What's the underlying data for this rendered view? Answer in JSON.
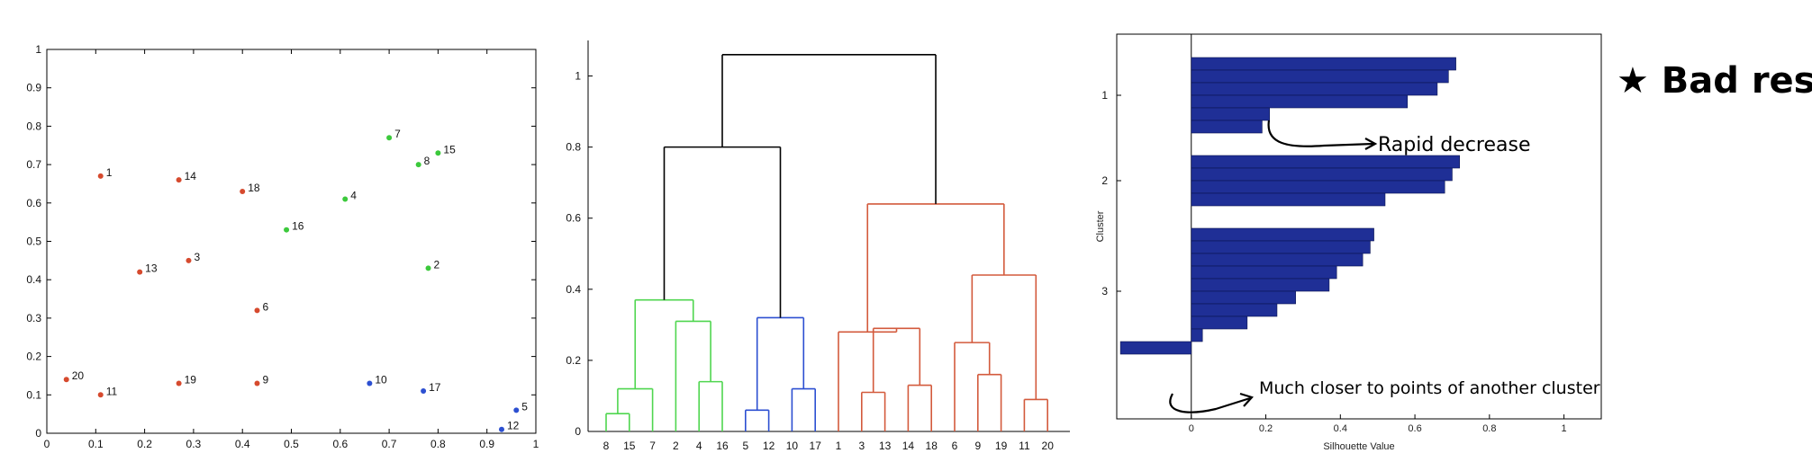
{
  "chart_data": [
    {
      "type": "scatter",
      "xlim": [
        0,
        1
      ],
      "ylim": [
        0,
        1
      ],
      "grid": false,
      "xticks": [
        "0",
        "0.1",
        "0.2",
        "0.3",
        "0.4",
        "0.5",
        "0.6",
        "0.7",
        "0.8",
        "0.9",
        "1"
      ],
      "yticks": [
        "0",
        "0.1",
        "0.2",
        "0.3",
        "0.4",
        "0.5",
        "0.6",
        "0.7",
        "0.8",
        "0.9",
        "1"
      ],
      "colors": {
        "green": "#3cc93c",
        "red": "#d64a2e",
        "blue": "#2c4fd1"
      },
      "points": [
        {
          "label": "1",
          "x": 0.11,
          "y": 0.67,
          "color": "red"
        },
        {
          "label": "2",
          "x": 0.78,
          "y": 0.43,
          "color": "green"
        },
        {
          "label": "3",
          "x": 0.29,
          "y": 0.45,
          "color": "red"
        },
        {
          "label": "4",
          "x": 0.61,
          "y": 0.61,
          "color": "green"
        },
        {
          "label": "5",
          "x": 0.96,
          "y": 0.06,
          "color": "blue"
        },
        {
          "label": "6",
          "x": 0.43,
          "y": 0.32,
          "color": "red"
        },
        {
          "label": "7",
          "x": 0.7,
          "y": 0.77,
          "color": "green"
        },
        {
          "label": "8",
          "x": 0.76,
          "y": 0.7,
          "color": "green"
        },
        {
          "label": "9",
          "x": 0.43,
          "y": 0.13,
          "color": "red"
        },
        {
          "label": "10",
          "x": 0.66,
          "y": 0.13,
          "color": "blue"
        },
        {
          "label": "11",
          "x": 0.11,
          "y": 0.1,
          "color": "red"
        },
        {
          "label": "12",
          "x": 0.93,
          "y": 0.01,
          "color": "blue"
        },
        {
          "label": "13",
          "x": 0.19,
          "y": 0.42,
          "color": "red"
        },
        {
          "label": "14",
          "x": 0.27,
          "y": 0.66,
          "color": "red"
        },
        {
          "label": "15",
          "x": 0.8,
          "y": 0.73,
          "color": "green"
        },
        {
          "label": "16",
          "x": 0.49,
          "y": 0.53,
          "color": "green"
        },
        {
          "label": "17",
          "x": 0.77,
          "y": 0.11,
          "color": "blue"
        },
        {
          "label": "18",
          "x": 0.4,
          "y": 0.63,
          "color": "red"
        },
        {
          "label": "19",
          "x": 0.27,
          "y": 0.13,
          "color": "red"
        },
        {
          "label": "20",
          "x": 0.04,
          "y": 0.14,
          "color": "red"
        }
      ]
    },
    {
      "type": "dendrogram",
      "ylim": [
        0,
        1.1
      ],
      "yticks": [
        "0",
        "0.2",
        "0.4",
        "0.6",
        "0.8",
        "1"
      ],
      "leaf_order": [
        "8",
        "15",
        "7",
        "2",
        "4",
        "16",
        "5",
        "12",
        "10",
        "17",
        "1",
        "3",
        "13",
        "14",
        "18",
        "6",
        "9",
        "19",
        "11",
        "20"
      ],
      "colors": {
        "green": "#4fd64f",
        "blue": "#2c4fd1",
        "red": "#d35a3c",
        "black": "#000000"
      },
      "merges": [
        {
          "a": "8",
          "b": "15",
          "height": 0.05,
          "color": "green"
        },
        {
          "a": [
            "8",
            "15"
          ],
          "b": "7",
          "height": 0.12,
          "color": "green"
        },
        {
          "a": "4",
          "b": "16",
          "height": 0.14,
          "color": "green"
        },
        {
          "a": "2",
          "b": [
            "4",
            "16"
          ],
          "height": 0.31,
          "color": "green"
        },
        {
          "a": [
            "8",
            "15",
            "7"
          ],
          "b": [
            "2",
            "4",
            "16"
          ],
          "height": 0.37,
          "color": "green"
        },
        {
          "a": "5",
          "b": "12",
          "height": 0.06,
          "color": "blue"
        },
        {
          "a": "10",
          "b": "17",
          "height": 0.12,
          "color": "blue"
        },
        {
          "a": [
            "5",
            "12"
          ],
          "b": [
            "10",
            "17"
          ],
          "height": 0.32,
          "color": "blue"
        },
        {
          "a": "3",
          "b": "13",
          "height": 0.11,
          "color": "red"
        },
        {
          "a": "14",
          "b": "18",
          "height": 0.13,
          "color": "red"
        },
        {
          "a": [
            "3",
            "13"
          ],
          "b": [
            "14",
            "18"
          ],
          "height": 0.29,
          "color": "red"
        },
        {
          "a": "1",
          "b": [
            "3",
            "13",
            "14",
            "18"
          ],
          "height": 0.28,
          "color": "red"
        },
        {
          "a": "9",
          "b": "19",
          "height": 0.16,
          "color": "red"
        },
        {
          "a": "6",
          "b": [
            "9",
            "19"
          ],
          "height": 0.25,
          "color": "red"
        },
        {
          "a": "11",
          "b": "20",
          "height": 0.09,
          "color": "red"
        },
        {
          "a": [
            "6",
            "9",
            "19"
          ],
          "b": [
            "11",
            "20"
          ],
          "height": 0.44,
          "color": "red"
        },
        {
          "a": [
            "1",
            "3",
            "13",
            "14",
            "18"
          ],
          "b": [
            "6",
            "9",
            "19",
            "11",
            "20"
          ],
          "height": 0.64,
          "color": "red"
        },
        {
          "a": [
            "green"
          ],
          "b": [
            "blue"
          ],
          "height": 0.8,
          "color": "black"
        },
        {
          "a": [
            "green",
            "blue"
          ],
          "b": [
            "red"
          ],
          "height": 1.06,
          "color": "black"
        }
      ]
    },
    {
      "type": "bar",
      "orientation": "horizontal",
      "xlabel": "Silhouette Value",
      "ylabel": "Cluster",
      "xlim": [
        -0.2,
        1.1
      ],
      "xticks": [
        "0",
        "0.2",
        "0.4",
        "0.6",
        "0.8",
        "1"
      ],
      "xtick_values": [
        0,
        0.2,
        0.4,
        0.6,
        0.8,
        1
      ],
      "yticks": [
        "1",
        "2",
        "3"
      ],
      "bar_color": "#1f2f96",
      "clusters": [
        {
          "label": "1",
          "values": [
            0.71,
            0.69,
            0.66,
            0.58,
            0.21,
            0.19
          ]
        },
        {
          "label": "2",
          "values": [
            0.72,
            0.7,
            0.68,
            0.52
          ]
        },
        {
          "label": "3",
          "values": [
            0.49,
            0.48,
            0.46,
            0.39,
            0.37,
            0.28,
            0.23,
            0.15,
            0.03,
            -0.19
          ]
        }
      ]
    }
  ],
  "annotations": {
    "title_note": "★ Bad result",
    "note1": "Rapid decrease",
    "note2": "Much closer to points of another cluster"
  }
}
